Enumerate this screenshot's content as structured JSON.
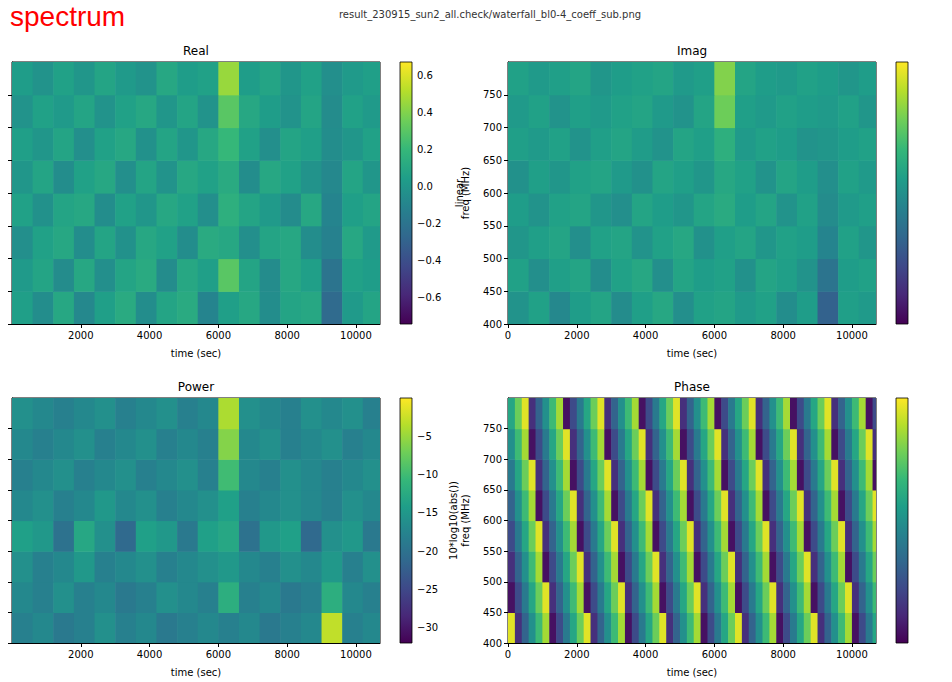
{
  "title": "spectrum",
  "subtitle": "result_230915_sun2_all.check/waterfall_bl0-4_coeff_sub.png",
  "chart_data": [
    {
      "type": "heatmap",
      "title": "Real",
      "x_label": "time (sec)",
      "xlim": [
        0,
        10700
      ],
      "xticks": [
        2000,
        4000,
        6000,
        8000,
        10000
      ],
      "ylim": [
        400,
        800
      ],
      "yticks": [
        400,
        450,
        500,
        550,
        600,
        650,
        700,
        750
      ],
      "tick_labels": "x",
      "time_edges": [
        0,
        600,
        1200,
        1800,
        2400,
        3000,
        3600,
        4200,
        4800,
        5400,
        6000,
        6600,
        7200,
        7800,
        8400,
        9000,
        9600,
        10200,
        10700
      ],
      "freq_edges": [
        400,
        450,
        500,
        550,
        600,
        650,
        700,
        750,
        800
      ],
      "cells": [
        [
          0.05,
          -0.05,
          0.1,
          -0.08,
          0.05,
          0.12,
          -0.05,
          0.08,
          0.12,
          -0.1,
          0.05,
          0.1,
          -0.05,
          0.08,
          0.1,
          -0.25,
          0.02,
          0.08
        ],
        [
          0.02,
          0.08,
          -0.06,
          0.1,
          -0.04,
          0.08,
          0.12,
          -0.06,
          0.1,
          0.05,
          0.3,
          0.08,
          -0.06,
          0.1,
          0.05,
          -0.2,
          0.06,
          0.04
        ],
        [
          -0.04,
          0.06,
          0.1,
          -0.05,
          0.08,
          -0.03,
          0.1,
          0.06,
          -0.05,
          0.12,
          0.1,
          -0.04,
          0.08,
          0.1,
          -0.05,
          -0.12,
          0.1,
          0.02
        ],
        [
          0.06,
          -0.03,
          0.08,
          0.1,
          -0.05,
          0.06,
          0,
          0.1,
          0.06,
          -0.04,
          0.15,
          0.08,
          0.02,
          -0.06,
          0.1,
          -0.1,
          0.05,
          0.08
        ],
        [
          0,
          0.08,
          -0.05,
          0.06,
          0.1,
          -0.04,
          0.08,
          -0.02,
          0.1,
          0.06,
          0.12,
          -0.05,
          0.1,
          0.06,
          -0.02,
          -0.08,
          0.08,
          0
        ],
        [
          0.05,
          0,
          0.08,
          -0.04,
          0.06,
          0.1,
          -0.03,
          0.08,
          0,
          0.1,
          0.2,
          0.06,
          -0.04,
          0.08,
          0.05,
          -0.05,
          0,
          0.06
        ],
        [
          -0.02,
          0.06,
          0.02,
          0.08,
          -0.02,
          0.06,
          0.1,
          0,
          0.08,
          -0.02,
          0.3,
          0.1,
          0.04,
          -0.02,
          0.08,
          -0.06,
          0.06,
          0.02
        ],
        [
          0.04,
          -0.02,
          0.06,
          0,
          0.08,
          0.02,
          -0.02,
          0.1,
          0.04,
          0.06,
          0.45,
          0.04,
          0.08,
          0,
          0.06,
          -0.04,
          0.02,
          0.05
        ]
      ],
      "colorbar_range": [
        -0.74,
        0.67
      ],
      "colorbar_ticks": [
        {
          "value": -0.6,
          "label": "−0.6"
        },
        {
          "value": -0.4,
          "label": "−0.4"
        },
        {
          "value": -0.2,
          "label": "−0.2"
        },
        {
          "value": 0,
          "label": "0.0"
        },
        0.2,
        0.4,
        0.6
      ],
      "colorbar_label": "linear"
    },
    {
      "type": "heatmap",
      "title": "Imag",
      "x_label": "time (sec)",
      "y_label": "freq (MHz)",
      "xlim": [
        0,
        10700
      ],
      "xticks": [
        0,
        2000,
        4000,
        6000,
        8000,
        10000
      ],
      "ylim": [
        400,
        800
      ],
      "yticks": [
        400,
        450,
        500,
        550,
        600,
        650,
        700,
        750
      ],
      "time_edges": [
        0,
        600,
        1200,
        1800,
        2400,
        3000,
        3600,
        4200,
        4800,
        5400,
        6000,
        6600,
        7200,
        7800,
        8400,
        9000,
        9600,
        10200,
        10700
      ],
      "freq_edges": [
        400,
        450,
        500,
        550,
        600,
        650,
        700,
        750,
        800
      ],
      "cells": [
        [
          -0.02,
          0.06,
          -0.08,
          0.04,
          0.08,
          -0.06,
          0.05,
          0.1,
          -0.04,
          0.06,
          0.08,
          0.02,
          0.06,
          -0.05,
          0.04,
          -0.3,
          0.05,
          0.02
        ],
        [
          0.06,
          -0.04,
          0.05,
          0.08,
          -0.05,
          0.06,
          0.1,
          -0.04,
          0.08,
          0.04,
          0.06,
          -0.03,
          0.08,
          0.05,
          -0.02,
          -0.2,
          0.04,
          0.06
        ],
        [
          0,
          0.05,
          0.08,
          -0.04,
          0.06,
          0.08,
          -0.02,
          0.06,
          0.1,
          -0.03,
          0.05,
          0.08,
          0,
          0.06,
          0.04,
          -0.1,
          0.06,
          0
        ],
        [
          0.04,
          -0.02,
          0.06,
          0.08,
          0,
          -0.04,
          0.08,
          0.04,
          0,
          0.08,
          0.12,
          0.04,
          0.08,
          -0.02,
          0.06,
          -0.06,
          0.02,
          0.05
        ],
        [
          -0.03,
          0.05,
          0,
          0.06,
          0.08,
          0.02,
          -0.03,
          0.08,
          0.05,
          0,
          0.1,
          0.06,
          -0.02,
          0.08,
          0.04,
          -0.04,
          0.06,
          0.02
        ],
        [
          0.05,
          0.02,
          0.06,
          -0.02,
          0.05,
          0.08,
          0.03,
          -0.02,
          0.08,
          0.05,
          0.15,
          0.02,
          0.06,
          0.04,
          -0.02,
          0,
          0.04,
          0.06
        ],
        [
          0.02,
          0.06,
          -0.02,
          0.05,
          0.02,
          0.06,
          0.08,
          0.02,
          -0.02,
          0.08,
          0.35,
          0.05,
          0.02,
          0.06,
          0.04,
          0.02,
          0.06,
          0
        ],
        [
          0.06,
          0.02,
          0.05,
          0.08,
          0,
          0.04,
          0.06,
          0.08,
          0.02,
          0.05,
          0.4,
          0.08,
          0.04,
          0.02,
          0.06,
          0.04,
          0,
          0.04
        ]
      ],
      "colorbar_range": [
        -0.74,
        0.67
      ]
    },
    {
      "type": "heatmap",
      "title": "Power",
      "x_label": "time (sec)",
      "xlim": [
        0,
        10700
      ],
      "xticks": [
        2000,
        4000,
        6000,
        8000,
        10000
      ],
      "ylim": [
        400,
        800
      ],
      "yticks": [
        400,
        450,
        500,
        550,
        600,
        650,
        700,
        750
      ],
      "tick_labels": "x",
      "time_edges": [
        0,
        600,
        1200,
        1800,
        2400,
        3000,
        3600,
        4200,
        4800,
        5400,
        6000,
        6600,
        7200,
        7800,
        8400,
        9000,
        9600,
        10200,
        10700
      ],
      "freq_edges": [
        400,
        450,
        500,
        550,
        600,
        650,
        700,
        750,
        800
      ],
      "cells": [
        [
          -18,
          -17,
          -19,
          -18,
          -16,
          -18,
          -17,
          -19,
          -18,
          -17,
          -18,
          -17,
          -19,
          -18,
          -17,
          -3,
          -18,
          -17
        ],
        [
          -17,
          -18,
          -16,
          -18,
          -17,
          -19,
          -18,
          -16,
          -17,
          -18,
          -12,
          -18,
          -17,
          -19,
          -18,
          -12,
          -17,
          -18
        ],
        [
          -16,
          -18,
          -17,
          -15,
          -18,
          -17,
          -16,
          -18,
          -17,
          -16,
          -15,
          -17,
          -18,
          -16,
          -17,
          -15,
          -18,
          -16
        ],
        [
          -14,
          -15,
          -20,
          -13,
          -16,
          -21,
          -14,
          -15,
          -19,
          -14,
          -13,
          -20,
          -15,
          -14,
          -21,
          -16,
          -15,
          -19
        ],
        [
          -17,
          -16,
          -18,
          -17,
          -15,
          -17,
          -16,
          -18,
          -17,
          -16,
          -14,
          -18,
          -17,
          -16,
          -17,
          -18,
          -16,
          -17
        ],
        [
          -18,
          -17,
          -16,
          -18,
          -17,
          -16,
          -18,
          -17,
          -16,
          -18,
          -10,
          -17,
          -18,
          -16,
          -17,
          -18,
          -17,
          -16
        ],
        [
          -17,
          -18,
          -17,
          -16,
          -18,
          -17,
          -16,
          -18,
          -17,
          -18,
          -6,
          -17,
          -16,
          -18,
          -17,
          -16,
          -18,
          -17
        ],
        [
          -16,
          -17,
          -18,
          -17,
          -16,
          -18,
          -17,
          -16,
          -18,
          -17,
          -4,
          -16,
          -17,
          -18,
          -16,
          -17,
          -16,
          -18
        ]
      ],
      "colorbar_range": [
        -32,
        0
      ],
      "colorbar_ticks": [
        {
          "value": -30,
          "label": "−30"
        },
        {
          "value": -25,
          "label": "−25"
        },
        {
          "value": -20,
          "label": "−20"
        },
        {
          "value": -15,
          "label": "−15"
        },
        {
          "value": -10,
          "label": "−10"
        },
        {
          "value": -5,
          "label": "−5"
        }
      ],
      "colorbar_label": "10*log10(abs())"
    },
    {
      "type": "heatmap",
      "title": "Phase",
      "x_label": "time (sec)",
      "y_label": "freq (MHz)",
      "xlim": [
        0,
        10700
      ],
      "xticks": [
        0,
        2000,
        4000,
        6000,
        8000,
        10000
      ],
      "ylim": [
        400,
        800
      ],
      "yticks": [
        400,
        450,
        500,
        550,
        600,
        650,
        700,
        750
      ],
      "time_edges": [
        0,
        200,
        400,
        600,
        800,
        1000,
        1200,
        1400,
        1600,
        1800,
        2000,
        2200,
        2400,
        2600,
        2800,
        3000,
        3200,
        3400,
        3600,
        3800,
        4000,
        4200,
        4400,
        4600,
        4800,
        5000,
        5200,
        5400,
        5600,
        5800,
        6000,
        6200,
        6400,
        6600,
        6800,
        7000,
        7200,
        7400,
        7600,
        7800,
        8000,
        8200,
        8400,
        8600,
        8800,
        9000,
        9200,
        9400,
        9600,
        9800,
        10000,
        10200,
        10400,
        10600,
        10700
      ],
      "freq_edges": [
        400,
        450,
        500,
        550,
        600,
        650,
        700,
        750,
        800
      ],
      "cells": [
        [
          2.86,
          -2.28,
          -1.14,
          0,
          1.14,
          2.28,
          -2.86,
          -1.71,
          -0.57,
          0.57,
          1.71,
          2.86,
          -2.28,
          -1.14,
          0,
          1.14,
          2.28,
          -2.86,
          -1.71,
          -0.57,
          0.57,
          1.71,
          2.86,
          -2.28,
          -1.14,
          0,
          1.14,
          2.28,
          -2.86,
          -1.71,
          -0.57,
          0.57,
          1.71,
          2.86,
          -2.28,
          -1.14,
          0,
          1.14,
          2.28,
          -2.86,
          -1.71,
          -0.57,
          0.57,
          1.71,
          2.86,
          -2.28,
          -1.14,
          0,
          1.14,
          2.28,
          -2.86,
          -1.71,
          -0.57,
          0.57
        ],
        [
          -2.86,
          -1.71,
          -0.57,
          0.57,
          1.71,
          2.86,
          -2.28,
          -1.14,
          0,
          1.14,
          2.28,
          -2.86,
          -1.71,
          -0.57,
          0.57,
          1.71,
          2.86,
          -2.28,
          -1.14,
          0,
          1.14,
          2.28,
          -2.86,
          -1.71,
          -0.57,
          0.57,
          1.71,
          2.86,
          -2.28,
          -1.14,
          0,
          1.14,
          2.28,
          -2.86,
          -1.71,
          -0.57,
          0.57,
          1.71,
          2.86,
          -2.28,
          -1.14,
          0,
          1.14,
          2.28,
          -2.86,
          -1.71,
          -0.57,
          0.57,
          1.71,
          2.86,
          -2.28,
          -1.14,
          0,
          1.14
        ],
        [
          -2.28,
          -1.14,
          0,
          1.14,
          2.28,
          -2.86,
          -1.71,
          -0.57,
          0.57,
          1.71,
          2.86,
          -2.28,
          -1.14,
          0,
          1.14,
          2.28,
          -2.86,
          -1.71,
          -0.57,
          0.57,
          1.71,
          2.86,
          -2.28,
          -1.14,
          0,
          1.14,
          2.28,
          -2.86,
          -1.71,
          -0.57,
          0.57,
          1.71,
          2.86,
          -2.28,
          -1.14,
          0,
          1.14,
          2.28,
          -2.86,
          -1.71,
          -0.57,
          0.57,
          1.71,
          2.86,
          -2.28,
          -1.14,
          0,
          1.14,
          2.28,
          -2.86,
          -1.71,
          -0.57,
          0.57,
          1.71
        ],
        [
          -1.71,
          -0.57,
          0.57,
          1.71,
          2.86,
          -2.28,
          -1.14,
          0,
          1.14,
          2.28,
          -2.86,
          -1.71,
          -0.57,
          0.57,
          1.71,
          2.86,
          -2.28,
          -1.14,
          0,
          1.14,
          2.28,
          -2.86,
          -1.71,
          -0.57,
          0.57,
          1.71,
          2.86,
          -2.28,
          -1.14,
          0,
          1.14,
          2.28,
          -2.86,
          -1.71,
          -0.57,
          0.57,
          1.71,
          2.86,
          -2.28,
          -1.14,
          0,
          1.14,
          2.28,
          -2.86,
          -1.71,
          -0.57,
          0.57,
          1.71,
          2.86,
          -2.28,
          -1.14,
          0,
          1.14,
          2.28
        ],
        [
          -1.14,
          0,
          1.14,
          2.28,
          -2.86,
          -1.71,
          -0.57,
          0.57,
          1.71,
          2.86,
          -2.28,
          -1.14,
          0,
          1.14,
          2.28,
          -2.86,
          -1.71,
          -0.57,
          0.57,
          1.71,
          2.86,
          -2.28,
          -1.14,
          0,
          1.14,
          2.28,
          -2.86,
          -1.71,
          -0.57,
          0.57,
          1.71,
          2.86,
          -2.28,
          -1.14,
          0,
          1.14,
          2.28,
          -2.86,
          -1.71,
          -0.57,
          0.57,
          1.71,
          2.86,
          -2.28,
          -1.14,
          0,
          1.14,
          2.28,
          -2.86,
          -1.71,
          -0.57,
          0.57,
          1.71,
          2.86
        ],
        [
          -0.57,
          0.57,
          1.71,
          2.86,
          -2.28,
          -1.14,
          0,
          1.14,
          2.28,
          -2.86,
          -1.71,
          -0.57,
          0.57,
          1.71,
          2.86,
          -2.28,
          -1.14,
          0,
          1.14,
          2.28,
          -2.86,
          -1.71,
          -0.57,
          0.57,
          1.71,
          2.86,
          -2.28,
          -1.14,
          0,
          1.14,
          2.28,
          -2.86,
          -1.71,
          -0.57,
          0.57,
          1.71,
          2.86,
          -2.28,
          -1.14,
          0,
          1.14,
          2.28,
          -2.86,
          -1.71,
          -0.57,
          0.57,
          1.71,
          2.86,
          -2.28,
          -1.14,
          0,
          1.14,
          2.28,
          -2.86
        ],
        [
          0,
          1.14,
          2.28,
          -2.86,
          -1.71,
          -0.57,
          0.57,
          1.71,
          2.86,
          -2.28,
          -1.14,
          0,
          1.14,
          2.28,
          -2.86,
          -1.71,
          -0.57,
          0.57,
          1.71,
          2.86,
          -2.28,
          -1.14,
          0,
          1.14,
          2.28,
          -2.86,
          -1.71,
          -0.57,
          0.57,
          1.71,
          2.86,
          -2.28,
          -1.14,
          0,
          1.14,
          2.28,
          -2.86,
          -1.71,
          -0.57,
          0.57,
          1.71,
          2.86,
          -2.28,
          -1.14,
          0,
          1.14,
          2.28,
          -2.86,
          -1.71,
          -0.57,
          0.57,
          1.71,
          2.86,
          -2.28
        ],
        [
          0.57,
          1.71,
          2.86,
          -2.28,
          -1.14,
          0,
          1.14,
          2.28,
          -2.86,
          -1.71,
          -0.57,
          0.57,
          1.71,
          2.86,
          -2.28,
          -1.14,
          0,
          1.14,
          2.28,
          -2.86,
          -1.71,
          -0.57,
          0.57,
          1.71,
          2.86,
          -2.28,
          -1.14,
          0,
          1.14,
          2.28,
          -2.86,
          -1.71,
          -0.57,
          0.57,
          1.71,
          2.86,
          -2.28,
          -1.14,
          0,
          1.14,
          2.28,
          -2.86,
          -1.71,
          -0.57,
          0.57,
          1.71,
          2.86,
          -2.28,
          -1.14,
          0,
          1.14,
          2.28,
          -2.86,
          -1.71
        ]
      ],
      "colorbar_range": [
        -3.14,
        3.14
      ]
    }
  ]
}
